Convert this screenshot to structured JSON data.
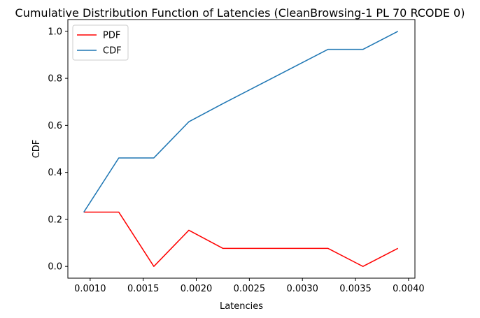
{
  "chart_data": {
    "type": "line",
    "title": "Cumulative Distribution Function of Latencies (CleanBrowsing-1 PL 70 RCODE 0)",
    "xlabel": "Latencies",
    "ylabel": "CDF",
    "xlim": [
      0.00079,
      0.00406
    ],
    "ylim": [
      -0.05,
      1.05
    ],
    "xticks": [
      0.001,
      0.0015,
      0.002,
      0.0025,
      0.003,
      0.0035,
      0.004
    ],
    "xtick_labels": [
      "0.0010",
      "0.0015",
      "0.0020",
      "0.0025",
      "0.0030",
      "0.0035",
      "0.0040"
    ],
    "yticks": [
      0.0,
      0.2,
      0.4,
      0.6,
      0.8,
      1.0
    ],
    "ytick_labels": [
      "0.0",
      "0.2",
      "0.4",
      "0.6",
      "0.8",
      "1.0"
    ],
    "grid": false,
    "legend_position": "top-left",
    "x": [
      0.00094,
      0.00127,
      0.0016,
      0.00193,
      0.00225,
      0.00258,
      0.00291,
      0.00324,
      0.00357,
      0.0039
    ],
    "series": [
      {
        "name": "PDF",
        "color": "#ff0000",
        "values": [
          0.2308,
          0.2308,
          0.0,
          0.1538,
          0.0769,
          0.0769,
          0.0769,
          0.0769,
          0.0,
          0.0769
        ]
      },
      {
        "name": "CDF",
        "color": "#1f77b4",
        "values": [
          0.2308,
          0.4615,
          0.4615,
          0.6154,
          0.6923,
          0.7692,
          0.8462,
          0.9231,
          0.9231,
          1.0
        ]
      }
    ]
  }
}
